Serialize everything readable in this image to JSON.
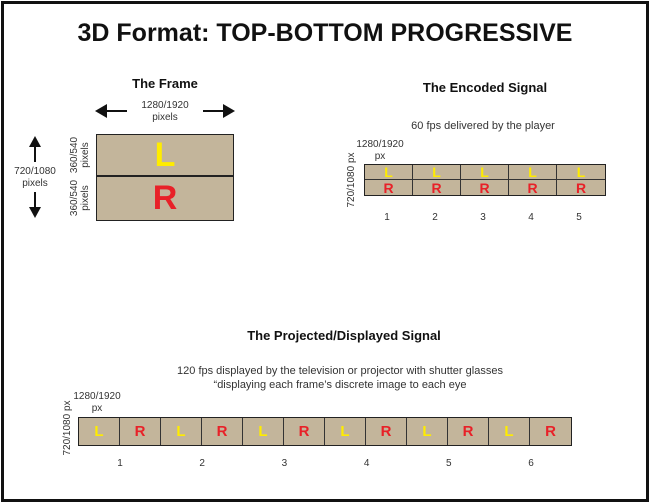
{
  "title": "3D Format: TOP-BOTTOM PROGRESSIVE",
  "frame": {
    "heading": "The Frame",
    "width_label": [
      "1280/1920",
      "pixels"
    ],
    "height_label": [
      "720/1080",
      "pixels"
    ],
    "half_label": "360/540 pixels",
    "top_letter": "L",
    "bottom_letter": "R"
  },
  "encoded": {
    "heading": "The Encoded Signal",
    "caption": "60 fps delivered by the player",
    "width_label": [
      "1280/1920",
      "px"
    ],
    "height_label": "720/1080 px",
    "frames": [
      {
        "top": "L",
        "bottom": "R",
        "number": "1"
      },
      {
        "top": "L",
        "bottom": "R",
        "number": "2"
      },
      {
        "top": "L",
        "bottom": "R",
        "number": "3"
      },
      {
        "top": "L",
        "bottom": "R",
        "number": "4"
      },
      {
        "top": "L",
        "bottom": "R",
        "number": "5"
      }
    ]
  },
  "projected": {
    "heading": "The Projected/Displayed Signal",
    "caption": [
      "120 fps displayed by the television or projector with shutter glasses",
      "“displaying each frame’s discrete image to each eye"
    ],
    "width_label": [
      "1280/1920",
      "px"
    ],
    "height_label": "720/1080 px",
    "cells": [
      "L",
      "R",
      "L",
      "R",
      "L",
      "R",
      "L",
      "R",
      "L",
      "R",
      "L",
      "R"
    ],
    "numbers": [
      "1",
      "2",
      "3",
      "4",
      "5",
      "6"
    ]
  },
  "colors": {
    "panel": "#c3b59b",
    "left_eye": "#ffec00",
    "right_eye": "#e82128"
  }
}
